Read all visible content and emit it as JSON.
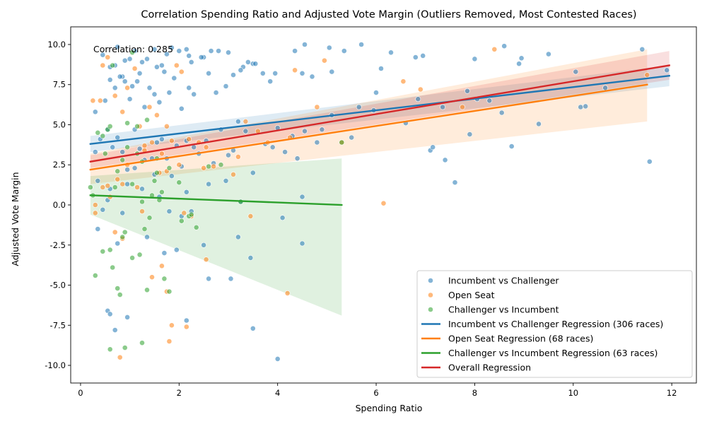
{
  "chart_data": {
    "type": "scatter",
    "title": "Correlation Spending Ratio and Adjusted Vote Margin (Outliers Removed, Most Contested Races)",
    "xlabel": "Spending Ratio",
    "ylabel": "Adjusted Vote Margin",
    "xlim": [
      -0.2,
      12.5
    ],
    "ylim": [
      -11.1,
      11.1
    ],
    "x_ticks": [
      0,
      2,
      4,
      6,
      8,
      10,
      12
    ],
    "y_ticks": [
      -10.0,
      -7.5,
      -5.0,
      -2.5,
      0.0,
      2.5,
      5.0,
      7.5,
      10.0
    ],
    "grid": false,
    "legend_position": "lower-right",
    "annotation": "Correlation: 0.285",
    "scatter_series": [
      {
        "name": "Incumbent vs Challenger",
        "color": "#1f77b4",
        "points": [
          [
            0.45,
            9.35
          ],
          [
            0.6,
            8.6
          ],
          [
            0.7,
            8.7
          ],
          [
            0.75,
            9.85
          ],
          [
            0.85,
            8.0
          ],
          [
            0.9,
            9.0
          ],
          [
            1.0,
            9.1
          ],
          [
            1.1,
            9.6
          ],
          [
            1.2,
            8.2
          ],
          [
            1.25,
            8.9
          ],
          [
            1.35,
            9.1
          ],
          [
            1.5,
            9.7
          ],
          [
            1.55,
            8.6
          ],
          [
            1.65,
            8.7
          ],
          [
            1.75,
            9.4
          ],
          [
            1.85,
            9.8
          ],
          [
            2.0,
            9.6
          ],
          [
            2.15,
            9.7
          ],
          [
            2.2,
            9.3
          ],
          [
            2.25,
            8.9
          ],
          [
            2.5,
            9.2
          ],
          [
            2.65,
            9.6
          ],
          [
            2.8,
            9.6
          ],
          [
            3.0,
            9.5
          ],
          [
            3.3,
            8.6
          ],
          [
            3.5,
            8.8
          ],
          [
            0.3,
            5.8
          ],
          [
            0.5,
            6.5
          ],
          [
            0.6,
            7.8
          ],
          [
            0.7,
            7.3
          ],
          [
            0.8,
            8.0
          ],
          [
            0.9,
            7.7
          ],
          [
            1.0,
            6.6
          ],
          [
            1.05,
            7.4
          ],
          [
            1.15,
            7.7
          ],
          [
            1.3,
            6.1
          ],
          [
            1.4,
            7.3
          ],
          [
            1.5,
            6.9
          ],
          [
            1.6,
            6.4
          ],
          [
            1.7,
            8.3
          ],
          [
            1.8,
            7.0
          ],
          [
            1.9,
            7.9
          ],
          [
            2.05,
            6.0
          ],
          [
            2.2,
            7.3
          ],
          [
            2.3,
            6.9
          ],
          [
            2.45,
            9.2
          ],
          [
            2.6,
            8.2
          ],
          [
            2.75,
            7.0
          ],
          [
            2.95,
            7.4
          ],
          [
            3.1,
            8.1
          ],
          [
            3.25,
            8.4
          ],
          [
            3.4,
            8.9
          ],
          [
            3.55,
            8.8
          ],
          [
            3.7,
            8.2
          ],
          [
            3.85,
            7.7
          ],
          [
            3.95,
            8.2
          ],
          [
            4.35,
            9.6
          ],
          [
            4.55,
            10.0
          ],
          [
            4.5,
            8.2
          ],
          [
            4.7,
            8.0
          ],
          [
            5.05,
            9.8
          ],
          [
            5.1,
            8.3
          ],
          [
            5.35,
            9.6
          ],
          [
            5.7,
            10.0
          ],
          [
            6.1,
            8.5
          ],
          [
            6.3,
            9.5
          ],
          [
            6.8,
            9.2
          ],
          [
            6.95,
            9.3
          ],
          [
            8.0,
            9.1
          ],
          [
            8.6,
            9.9
          ],
          [
            8.9,
            8.8
          ],
          [
            8.95,
            9.15
          ],
          [
            9.5,
            9.4
          ],
          [
            11.4,
            9.7
          ],
          [
            11.9,
            8.4
          ],
          [
            10.05,
            8.3
          ],
          [
            10.15,
            6.1
          ],
          [
            10.25,
            6.15
          ],
          [
            10.65,
            7.3
          ],
          [
            0.3,
            3.3
          ],
          [
            0.4,
            4.1
          ],
          [
            0.55,
            4.7
          ],
          [
            0.65,
            3.6
          ],
          [
            0.75,
            4.2
          ],
          [
            0.85,
            3.3
          ],
          [
            0.95,
            2.2
          ],
          [
            1.1,
            4.7
          ],
          [
            1.2,
            3.5
          ],
          [
            1.3,
            2.8
          ],
          [
            1.45,
            2.9
          ],
          [
            1.55,
            3.9
          ],
          [
            1.65,
            4.1
          ],
          [
            1.75,
            2.9
          ],
          [
            1.85,
            1.8
          ],
          [
            1.95,
            3.7
          ],
          [
            2.05,
            2.4
          ],
          [
            2.15,
            4.0
          ],
          [
            2.3,
            3.6
          ],
          [
            2.4,
            3.2
          ],
          [
            2.55,
            4.0
          ],
          [
            2.7,
            2.6
          ],
          [
            2.85,
            4.7
          ],
          [
            3.0,
            3.1
          ],
          [
            3.1,
            3.4
          ],
          [
            3.2,
            5.2
          ],
          [
            3.35,
            4.6
          ],
          [
            3.5,
            2.0
          ],
          [
            3.75,
            3.8
          ],
          [
            3.9,
            3.6
          ],
          [
            4.0,
            4.8
          ],
          [
            4.15,
            3.3
          ],
          [
            4.3,
            4.3
          ],
          [
            4.4,
            2.9
          ],
          [
            4.55,
            4.6
          ],
          [
            4.8,
            3.9
          ],
          [
            4.9,
            4.7
          ],
          [
            5.1,
            5.6
          ],
          [
            5.5,
            4.2
          ],
          [
            5.65,
            6.1
          ],
          [
            5.95,
            5.9
          ],
          [
            6.0,
            7.0
          ],
          [
            6.6,
            5.1
          ],
          [
            6.85,
            6.6
          ],
          [
            7.1,
            3.4
          ],
          [
            7.15,
            3.6
          ],
          [
            7.35,
            6.1
          ],
          [
            7.4,
            2.8
          ],
          [
            7.6,
            1.4
          ],
          [
            7.85,
            7.1
          ],
          [
            7.9,
            4.4
          ],
          [
            8.05,
            6.6
          ],
          [
            8.3,
            6.5
          ],
          [
            8.55,
            5.75
          ],
          [
            8.75,
            3.65
          ],
          [
            9.3,
            5.05
          ],
          [
            11.55,
            2.7
          ],
          [
            0.35,
            1.5
          ],
          [
            0.45,
            -0.3
          ],
          [
            0.55,
            0.3
          ],
          [
            0.6,
            1.0
          ],
          [
            0.75,
            -2.4
          ],
          [
            0.85,
            -0.5
          ],
          [
            0.95,
            1.3
          ],
          [
            1.1,
            2.3
          ],
          [
            1.25,
            1.0
          ],
          [
            1.35,
            -2.0
          ],
          [
            1.5,
            1.9
          ],
          [
            1.6,
            0.5
          ],
          [
            1.7,
            -3.0
          ],
          [
            1.8,
            -0.4
          ],
          [
            1.95,
            -2.8
          ],
          [
            2.05,
            -0.7
          ],
          [
            2.15,
            0.8
          ],
          [
            2.25,
            -0.4
          ],
          [
            2.5,
            -2.5
          ],
          [
            2.6,
            -4.6
          ],
          [
            2.6,
            1.3
          ],
          [
            2.95,
            1.5
          ],
          [
            3.05,
            -4.6
          ],
          [
            3.2,
            -2.0
          ],
          [
            3.25,
            0.2
          ],
          [
            3.45,
            -3.3
          ],
          [
            3.5,
            -7.7
          ],
          [
            4.0,
            -9.6
          ],
          [
            4.1,
            -0.8
          ],
          [
            4.5,
            -2.4
          ],
          [
            4.5,
            0.5
          ],
          [
            0.35,
            -1.5
          ],
          [
            0.55,
            -6.6
          ],
          [
            0.6,
            -6.8
          ],
          [
            0.7,
            -7.8
          ],
          [
            0.95,
            -7.0
          ],
          [
            2.15,
            -7.2
          ]
        ]
      },
      {
        "name": "Open Seat",
        "color": "#ff7f0e",
        "points": [
          [
            0.25,
            6.5
          ],
          [
            0.4,
            6.5
          ],
          [
            0.45,
            8.7
          ],
          [
            0.55,
            9.2
          ],
          [
            0.7,
            6.8
          ],
          [
            0.85,
            5.8
          ],
          [
            0.95,
            7.3
          ],
          [
            1.1,
            8.5
          ],
          [
            1.2,
            4.9
          ],
          [
            1.3,
            3.7
          ],
          [
            1.4,
            6.1
          ],
          [
            1.55,
            5.6
          ],
          [
            1.65,
            3.2
          ],
          [
            1.75,
            4.9
          ],
          [
            1.85,
            4.0
          ],
          [
            1.95,
            8.7
          ],
          [
            2.05,
            8.3
          ],
          [
            2.2,
            4.1
          ],
          [
            2.4,
            3.9
          ],
          [
            2.55,
            3.6
          ],
          [
            2.7,
            2.4
          ],
          [
            3.2,
            3.0
          ],
          [
            3.35,
            5.2
          ],
          [
            3.6,
            4.6
          ],
          [
            3.8,
            3.9
          ],
          [
            4.25,
            4.2
          ],
          [
            4.35,
            8.4
          ],
          [
            4.8,
            6.1
          ],
          [
            4.95,
            9.0
          ],
          [
            5.3,
            3.9
          ],
          [
            6.55,
            7.7
          ],
          [
            6.9,
            7.2
          ],
          [
            7.75,
            6.1
          ],
          [
            8.4,
            9.7
          ],
          [
            11.5,
            8.1
          ],
          [
            0.3,
            0.0
          ],
          [
            0.45,
            1.1
          ],
          [
            0.55,
            1.2
          ],
          [
            0.6,
            0.5
          ],
          [
            0.75,
            1.6
          ],
          [
            0.85,
            1.3
          ],
          [
            0.95,
            2.5
          ],
          [
            1.15,
            1.1
          ],
          [
            1.3,
            3.4
          ],
          [
            1.45,
            3.9
          ],
          [
            1.6,
            2.0
          ],
          [
            1.75,
            2.1
          ],
          [
            2.0,
            2.5
          ],
          [
            2.1,
            -0.5
          ],
          [
            2.25,
            -0.7
          ],
          [
            2.5,
            2.3
          ],
          [
            3.1,
            1.9
          ],
          [
            3.45,
            -0.7
          ],
          [
            0.3,
            -0.5
          ],
          [
            0.7,
            -1.7
          ],
          [
            0.85,
            -2.1
          ],
          [
            1.25,
            -0.4
          ],
          [
            1.45,
            -4.5
          ],
          [
            1.65,
            -3.8
          ],
          [
            1.75,
            -5.4
          ],
          [
            1.85,
            -7.5
          ],
          [
            2.15,
            -7.6
          ],
          [
            2.55,
            -3.4
          ],
          [
            4.2,
            -5.5
          ],
          [
            6.15,
            0.1
          ],
          [
            0.8,
            -9.5
          ],
          [
            1.8,
            -8.5
          ]
        ]
      },
      {
        "name": "Challenger vs Incumbent",
        "color": "#2ca02c",
        "points": [
          [
            0.2,
            1.1
          ],
          [
            0.25,
            0.6
          ],
          [
            0.35,
            4.5
          ],
          [
            0.45,
            4.3
          ],
          [
            0.55,
            4.7
          ],
          [
            0.6,
            4.9
          ],
          [
            0.65,
            8.7
          ],
          [
            0.75,
            2.1
          ],
          [
            0.85,
            2.8
          ],
          [
            0.95,
            5.1
          ],
          [
            1.05,
            9.5
          ],
          [
            1.15,
            3.2
          ],
          [
            1.25,
            2.7
          ],
          [
            1.35,
            5.3
          ],
          [
            1.45,
            0.6
          ],
          [
            1.55,
            2.0
          ],
          [
            1.65,
            0.8
          ],
          [
            1.8,
            2.3
          ],
          [
            2.0,
            1.4
          ],
          [
            2.2,
            -0.7
          ],
          [
            2.35,
            -1.4
          ],
          [
            2.6,
            2.4
          ],
          [
            2.85,
            2.5
          ],
          [
            3.25,
            0.2
          ],
          [
            5.3,
            3.9
          ],
          [
            0.3,
            -4.4
          ],
          [
            0.45,
            -2.9
          ],
          [
            0.6,
            -2.8
          ],
          [
            0.65,
            -3.9
          ],
          [
            0.75,
            -5.2
          ],
          [
            0.8,
            -5.6
          ],
          [
            0.9,
            -1.7
          ],
          [
            1.05,
            -3.3
          ],
          [
            1.2,
            -3.1
          ],
          [
            1.3,
            -1.5
          ],
          [
            1.35,
            -5.3
          ],
          [
            1.4,
            -0.8
          ],
          [
            1.6,
            0.3
          ],
          [
            1.7,
            -4.6
          ],
          [
            1.8,
            -5.4
          ],
          [
            2.05,
            -1.0
          ],
          [
            2.25,
            -0.6
          ],
          [
            0.6,
            -9.0
          ],
          [
            0.9,
            -8.9
          ],
          [
            1.25,
            -8.6
          ],
          [
            0.7,
            1.1
          ],
          [
            0.95,
            3.6
          ],
          [
            1.15,
            4.9
          ],
          [
            1.5,
            1.5
          ],
          [
            1.05,
            1.3
          ],
          [
            1.55,
            2.9
          ],
          [
            0.5,
            3.2
          ],
          [
            0.85,
            -2.0
          ],
          [
            1.25,
            0.2
          ]
        ]
      }
    ],
    "regressions": [
      {
        "name": "Incumbent vs Challenger Regression (306 races)",
        "color": "#1f77b4",
        "x": [
          0.2,
          11.95
        ],
        "y": [
          3.8,
          8.05
        ],
        "band_lower": [
          3.3,
          7.4
        ],
        "band_upper": [
          4.3,
          8.7
        ]
      },
      {
        "name": "Open Seat Regression (68 races)",
        "color": "#ff7f0e",
        "x": [
          0.2,
          11.5
        ],
        "y": [
          2.2,
          7.5
        ],
        "band_lower": [
          1.3,
          5.2
        ],
        "band_upper": [
          3.2,
          9.7
        ]
      },
      {
        "name": "Challenger vs Incumbent Regression (63 races)",
        "color": "#2ca02c",
        "x": [
          0.2,
          5.3
        ],
        "y": [
          0.6,
          0.0
        ],
        "band_lower": [
          -0.6,
          -6.9
        ],
        "band_upper": [
          1.8,
          2.9
        ]
      },
      {
        "name": "Overall Regression",
        "color": "#d62728",
        "x": [
          0.2,
          11.95
        ],
        "y": [
          2.7,
          8.7
        ],
        "band_lower": [
          2.3,
          7.8
        ],
        "band_upper": [
          3.1,
          9.6
        ]
      }
    ]
  }
}
